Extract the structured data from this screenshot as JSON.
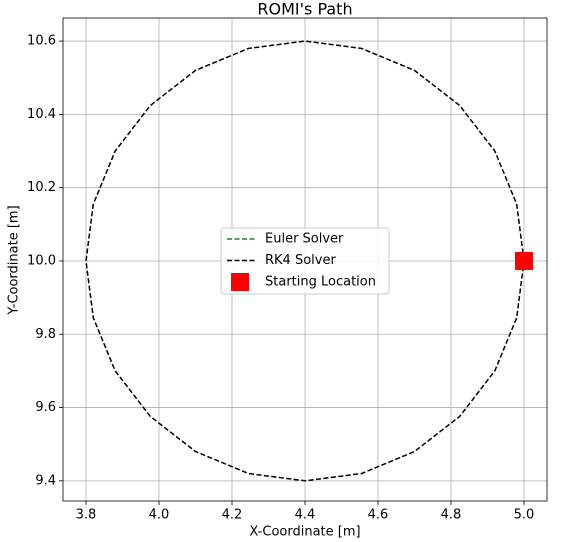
{
  "chart_data": {
    "type": "line",
    "title": "ROMI's Path",
    "xlabel": "X-Coordinate [m]",
    "ylabel": "Y-Coordinate [m]",
    "xlim": [
      3.737,
      5.063
    ],
    "ylim": [
      9.345,
      10.663
    ],
    "xticks": [
      3.8,
      {
        "value": 4,
        "label": "4.0"
      },
      4.2,
      4.4,
      4.6,
      4.8,
      {
        "value": 5,
        "label": "5.0"
      }
    ],
    "yticks": [
      9.4,
      9.6,
      9.8,
      {
        "value": 10,
        "label": "10.0"
      },
      10.2,
      10.4,
      10.6
    ],
    "grid": true,
    "legend": "center",
    "series": [
      {
        "name": "Euler Solver",
        "color": "#2a7f2a",
        "style": "dashed",
        "x": [
          5.0,
          4.98,
          4.92,
          4.824,
          4.7,
          4.555,
          4.4,
          4.245,
          4.1,
          3.976,
          3.88,
          3.82,
          3.8,
          3.82,
          3.88,
          3.976,
          4.1,
          4.245,
          4.4,
          4.555,
          4.7,
          4.824,
          4.92,
          4.98,
          5.0
        ],
        "values": [
          10.0,
          10.155,
          10.3,
          10.424,
          10.52,
          10.58,
          10.6,
          10.58,
          10.52,
          10.424,
          10.3,
          10.155,
          10.0,
          9.845,
          9.7,
          9.576,
          9.48,
          9.42,
          9.4,
          9.42,
          9.48,
          9.576,
          9.7,
          9.845,
          10.0
        ]
      },
      {
        "name": "RK4 Solver",
        "color": "#000000",
        "style": "dashed",
        "x": [
          5.0,
          4.98,
          4.92,
          4.824,
          4.7,
          4.555,
          4.4,
          4.245,
          4.1,
          3.976,
          3.88,
          3.82,
          3.8,
          3.82,
          3.88,
          3.976,
          4.1,
          4.245,
          4.4,
          4.555,
          4.7,
          4.824,
          4.92,
          4.98,
          5.0
        ],
        "values": [
          10.0,
          10.155,
          10.3,
          10.424,
          10.52,
          10.58,
          10.6,
          10.58,
          10.52,
          10.424,
          10.3,
          10.155,
          10.0,
          9.845,
          9.7,
          9.576,
          9.48,
          9.42,
          9.4,
          9.42,
          9.48,
          9.576,
          9.7,
          9.845,
          10.0
        ]
      },
      {
        "name": "Starting Location",
        "color": "#ff0000",
        "style": "square",
        "x": [
          5.0
        ],
        "values": [
          10.0
        ]
      }
    ]
  }
}
